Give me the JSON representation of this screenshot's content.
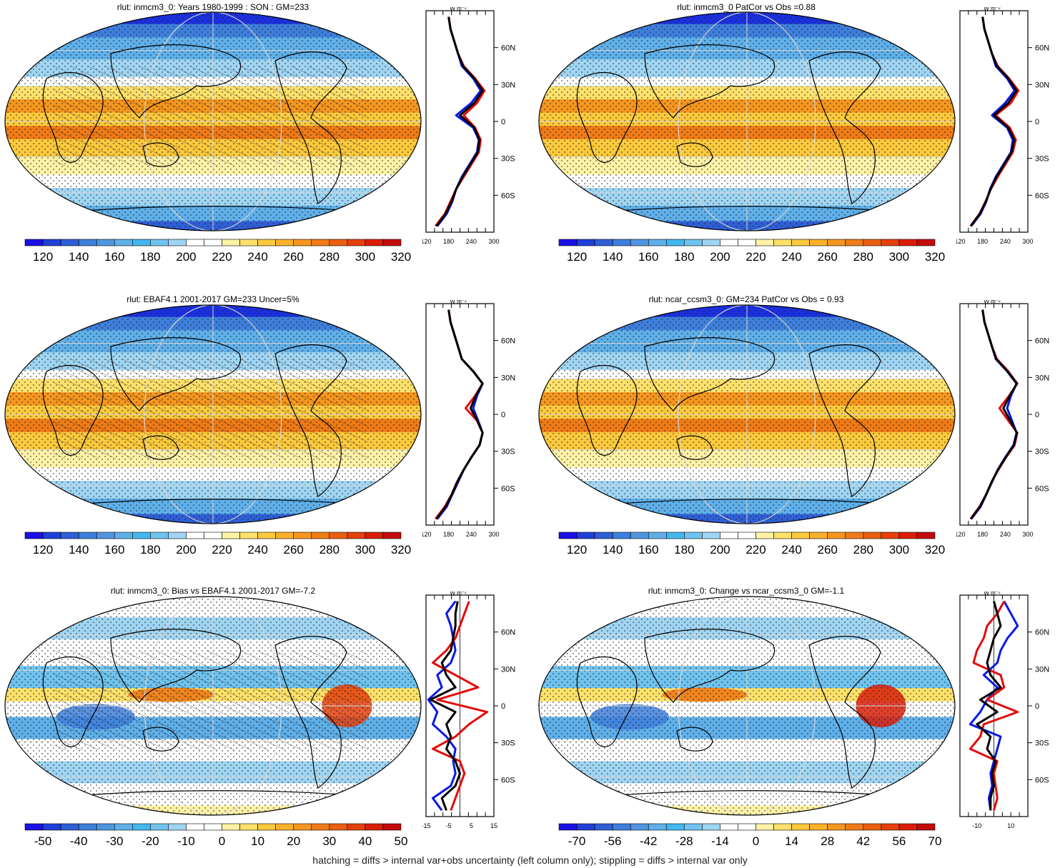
{
  "footer": "hatching = diffs > internal var+obs uncertainty (left column only); stippling = diffs > internal var only",
  "colors": {
    "abs_scale": [
      "#1a10e6",
      "#1f3fd9",
      "#2f5fd6",
      "#3e7fdc",
      "#4f96e0",
      "#5fb0ea",
      "#43b7ee",
      "#6fc3ef",
      "#9fd5f2",
      "#ffffff",
      "#ffffff",
      "#fff2a6",
      "#fde16a",
      "#fbc93c",
      "#f9b12a",
      "#f5961e",
      "#f07b16",
      "#ea5f10",
      "#e5400c",
      "#db1d08",
      "#c40a0a"
    ],
    "abs_labels": [
      "120",
      "140",
      "160",
      "180",
      "200",
      "220",
      "240",
      "260",
      "280",
      "300",
      "320"
    ],
    "bias_labels": [
      "-50",
      "-40",
      "-30",
      "-20",
      "-10",
      "0",
      "10",
      "20",
      "30",
      "40",
      "50"
    ],
    "change_labels": [
      "-70",
      "-56",
      "-42",
      "-28",
      "-14",
      "0",
      "14",
      "28",
      "42",
      "56",
      "70"
    ],
    "series_blue": "#0a18e6",
    "series_red": "#e50a0a",
    "series_black": "#000000"
  },
  "panels": [
    {
      "title": "rlut: inmcm3_0: Years 1980-1999 : SON : GM=233",
      "scale": "abs",
      "profile_ticks": [
        "120",
        "180",
        "240",
        "300"
      ],
      "lat_ticks": [
        "60N",
        "30N",
        "0",
        "30S",
        "60S"
      ],
      "units": "W m⁻²"
    },
    {
      "title": "rlut: inmcm3_0 PatCor vs Obs =0.88",
      "scale": "abs",
      "profile_ticks": [
        "120",
        "180",
        "240",
        "300"
      ],
      "lat_ticks": [
        "60N",
        "30N",
        "0",
        "30S",
        "60S"
      ],
      "units": "W m⁻²"
    },
    {
      "title": "rlut: EBAF4.1 2001-2017 GM=233 Uncer=5%",
      "scale": "abs",
      "profile_ticks": [
        "120",
        "180",
        "240",
        "300"
      ],
      "lat_ticks": [
        "60N",
        "30N",
        "0",
        "30S",
        "60S"
      ],
      "units": "W m⁻²"
    },
    {
      "title": "rlut: ncar_ccsm3_0: GM=234 PatCor vs Obs = 0.93",
      "scale": "abs",
      "profile_ticks": [
        "120",
        "180",
        "240",
        "300"
      ],
      "lat_ticks": [
        "60N",
        "30N",
        "0",
        "30S",
        "60S"
      ],
      "units": "W m⁻²"
    },
    {
      "title": "rlut: inmcm3_0: Bias vs EBAF4.1 2001-2017  GM=-7.2",
      "scale": "bias",
      "profile_ticks": [
        "-15",
        "-5",
        "5",
        "15"
      ],
      "lat_ticks": [
        "60N",
        "30N",
        "0",
        "30S",
        "60S"
      ],
      "units": "W m⁻²"
    },
    {
      "title": "rlut: inmcm3_0: Change vs ncar_ccsm3_0 GM=-1.1",
      "scale": "change",
      "profile_ticks": [
        "-10",
        "10"
      ],
      "lat_ticks": [
        "60N",
        "30N",
        "0",
        "30S",
        "60S"
      ],
      "units": "W m⁻²"
    }
  ],
  "chart_data": [
    {
      "type": "line",
      "title": "rlut: inmcm3_0: Years 1980-1999 : SON : GM=233",
      "xlim": [
        120,
        300
      ],
      "ylim": [
        -90,
        90
      ],
      "x_lat": [
        -85,
        -75,
        -65,
        -55,
        -45,
        -35,
        -25,
        -15,
        -5,
        5,
        15,
        25,
        35,
        45,
        55,
        65,
        75,
        85
      ],
      "series": [
        {
          "color": "blue",
          "values": [
            150,
            175,
            190,
            200,
            215,
            235,
            255,
            260,
            245,
            200,
            240,
            265,
            245,
            215,
            205,
            195,
            185,
            180
          ]
        },
        {
          "color": "red",
          "values": [
            145,
            170,
            185,
            200,
            220,
            240,
            260,
            265,
            250,
            220,
            255,
            275,
            250,
            220,
            205,
            195,
            185,
            180
          ]
        },
        {
          "color": "black",
          "values": [
            148,
            172,
            188,
            200,
            217,
            237,
            257,
            262,
            248,
            210,
            248,
            270,
            248,
            218,
            205,
            195,
            185,
            180
          ]
        }
      ]
    },
    {
      "type": "line",
      "title": "rlut: inmcm3_0 PatCor vs Obs =0.88",
      "xlim": [
        120,
        300
      ],
      "ylim": [
        -90,
        90
      ],
      "x_lat": [
        -85,
        -75,
        -65,
        -55,
        -45,
        -35,
        -25,
        -15,
        -5,
        5,
        15,
        25,
        35,
        45,
        55,
        65,
        75,
        85
      ],
      "series": [
        {
          "color": "blue",
          "values": [
            150,
            175,
            190,
            200,
            215,
            235,
            255,
            260,
            245,
            205,
            240,
            265,
            245,
            215,
            205,
            195,
            185,
            180
          ]
        },
        {
          "color": "red",
          "values": [
            148,
            172,
            188,
            202,
            220,
            240,
            260,
            268,
            252,
            215,
            255,
            275,
            250,
            220,
            205,
            195,
            185,
            180
          ]
        },
        {
          "color": "black",
          "values": [
            149,
            173,
            189,
            201,
            217,
            237,
            257,
            264,
            248,
            210,
            248,
            270,
            248,
            218,
            205,
            195,
            185,
            180
          ]
        }
      ]
    },
    {
      "type": "line",
      "title": "rlut: EBAF4.1 2001-2017 GM=233 Uncer=5%",
      "xlim": [
        120,
        300
      ],
      "ylim": [
        -90,
        90
      ],
      "x_lat": [
        -85,
        -75,
        -65,
        -55,
        -45,
        -35,
        -25,
        -15,
        -5,
        5,
        15,
        25,
        35,
        45,
        55,
        65,
        75,
        85
      ],
      "series": [
        {
          "color": "blue",
          "values": [
            150,
            175,
            190,
            205,
            220,
            240,
            262,
            270,
            258,
            245,
            255,
            270,
            245,
            215,
            205,
            195,
            185,
            180
          ]
        },
        {
          "color": "red",
          "values": [
            145,
            170,
            188,
            202,
            220,
            240,
            262,
            270,
            255,
            225,
            250,
            270,
            245,
            215,
            205,
            195,
            185,
            180
          ]
        },
        {
          "color": "black",
          "values": [
            148,
            172,
            189,
            203,
            220,
            240,
            262,
            270,
            256,
            238,
            252,
            270,
            245,
            215,
            205,
            195,
            185,
            180
          ]
        }
      ]
    },
    {
      "type": "line",
      "title": "rlut: ncar_ccsm3_0: GM=234 PatCor vs Obs = 0.93",
      "xlim": [
        120,
        300
      ],
      "ylim": [
        -90,
        90
      ],
      "x_lat": [
        -85,
        -75,
        -65,
        -55,
        -45,
        -35,
        -25,
        -15,
        -5,
        5,
        15,
        25,
        35,
        45,
        55,
        65,
        75,
        85
      ],
      "series": [
        {
          "color": "blue",
          "values": [
            150,
            175,
            190,
            205,
            220,
            240,
            262,
            270,
            258,
            245,
            255,
            270,
            245,
            215,
            205,
            195,
            185,
            180
          ]
        },
        {
          "color": "red",
          "values": [
            148,
            172,
            190,
            204,
            222,
            242,
            265,
            272,
            248,
            225,
            250,
            272,
            248,
            218,
            205,
            195,
            185,
            180
          ]
        },
        {
          "color": "black",
          "values": [
            149,
            173,
            190,
            204,
            221,
            241,
            263,
            271,
            253,
            235,
            252,
            271,
            246,
            216,
            205,
            195,
            185,
            180
          ]
        }
      ]
    },
    {
      "type": "line",
      "title": "rlut: inmcm3_0: Bias vs EBAF4.1 2001-2017  GM=-7.2",
      "xlim": [
        -15,
        15
      ],
      "ylim": [
        -90,
        90
      ],
      "x_lat": [
        -85,
        -75,
        -65,
        -55,
        -45,
        -35,
        -25,
        -15,
        -5,
        5,
        15,
        25,
        35,
        45,
        55,
        65,
        75,
        85
      ],
      "series": [
        {
          "color": "blue",
          "values": [
            -8,
            -12,
            -4,
            -2,
            -3,
            -2,
            -6,
            -12,
            -10,
            -14,
            -8,
            -10,
            -4,
            -2,
            -3,
            -4,
            -6,
            -2
          ]
        },
        {
          "color": "red",
          "values": [
            -4,
            -2,
            0,
            2,
            0,
            -12,
            -2,
            4,
            12,
            -10,
            8,
            -2,
            -12,
            -6,
            -2,
            0,
            2,
            4
          ]
        },
        {
          "color": "black",
          "values": [
            -6,
            -8,
            -2,
            0,
            -2,
            -6,
            -4,
            -6,
            -2,
            -13,
            -2,
            -6,
            -8,
            -4,
            -3,
            -2,
            -2,
            -1
          ]
        }
      ]
    },
    {
      "type": "line",
      "title": "rlut: inmcm3_0: Change vs ncar_ccsm3_0 GM=-1.1",
      "xlim": [
        -20,
        20
      ],
      "ylim": [
        -90,
        90
      ],
      "x_lat": [
        -85,
        -75,
        -65,
        -55,
        -45,
        -35,
        -25,
        -15,
        -5,
        5,
        15,
        25,
        35,
        45,
        55,
        65,
        75,
        85
      ],
      "series": [
        {
          "color": "blue",
          "values": [
            -2,
            -3,
            -1,
            -2,
            0,
            2,
            4,
            -14,
            -8,
            -4,
            2,
            -6,
            2,
            4,
            8,
            14,
            10,
            6
          ]
        },
        {
          "color": "red",
          "values": [
            0,
            2,
            1,
            0,
            2,
            -14,
            -8,
            -6,
            14,
            -4,
            6,
            4,
            -12,
            -10,
            -6,
            -4,
            2,
            6
          ]
        },
        {
          "color": "black",
          "values": [
            -2,
            -2,
            0,
            -1,
            1,
            -4,
            -2,
            -10,
            2,
            -8,
            4,
            -2,
            -4,
            -2,
            0,
            4,
            2,
            0
          ]
        }
      ]
    }
  ]
}
